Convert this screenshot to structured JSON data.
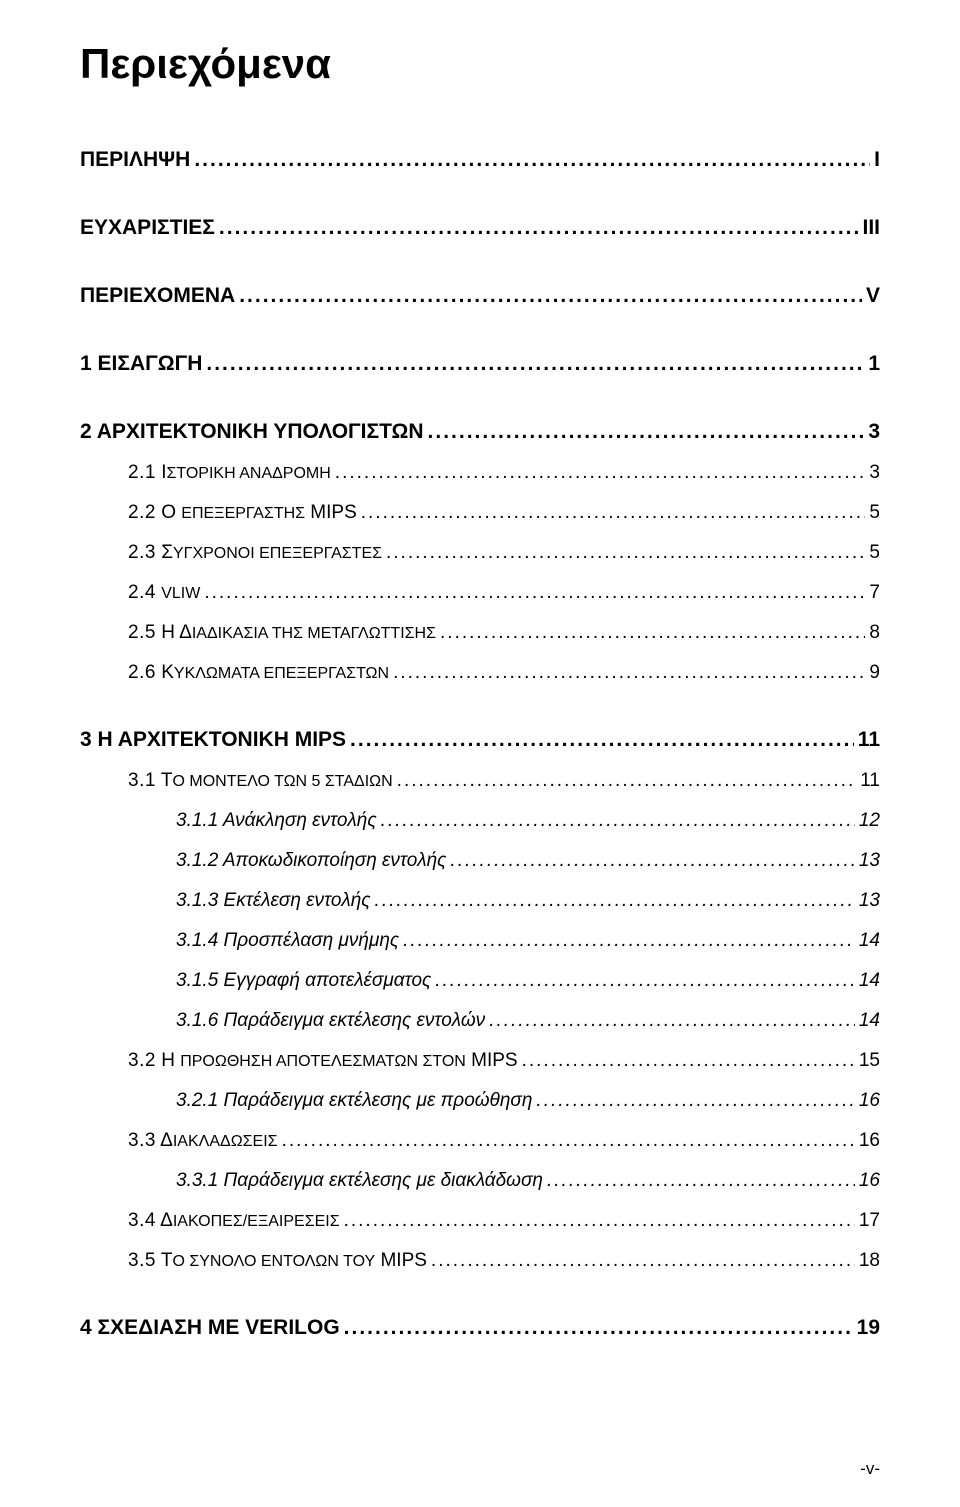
{
  "page": {
    "title": "Περιεχόμενα",
    "footer": "-v-"
  },
  "toc": [
    {
      "level": 0,
      "label": "ΠΕΡΙΛΗΨΗ",
      "page": "I"
    },
    {
      "level": 0,
      "label": "ΕΥΧΑΡΙΣΤΙΕΣ",
      "page": "III"
    },
    {
      "level": 0,
      "label": "ΠΕΡΙΕΧΟΜΕΝΑ",
      "page": "V"
    },
    {
      "level": 0,
      "label": "1   ΕΙΣΑΓΩΓΗ",
      "page": "1"
    },
    {
      "level": 0,
      "label": "2   ΑΡΧΙΤΕΚΤΟΝΙΚΗ ΥΠΟΛΟΓΙΣΤΩΝ",
      "page": "3"
    },
    {
      "level": 1,
      "num": "2.1",
      "first": "Ι",
      "rest": "ΣΤΟΡΙΚΗ ΑΝΑΔΡΟΜΗ",
      "page": "3"
    },
    {
      "level": 1,
      "num": "2.2",
      "first": "Ο ",
      "rest": "ΕΠΕΞΕΡΓΑΣΤΗΣ",
      "tail": " MIPS",
      "page": "5"
    },
    {
      "level": 1,
      "num": "2.3",
      "first": "Σ",
      "rest": "ΥΓΧΡΟΝΟΙ ΕΠΕΞΕΡΓΑΣΤΕΣ",
      "page": "5"
    },
    {
      "level": 1,
      "num": "2.4",
      "first": "",
      "rest": "VLIW",
      "page": "7"
    },
    {
      "level": 1,
      "num": "2.5",
      "first": "Η Δ",
      "rest": "ΙΑΔΙΚΑΣΙΑ ΤΗΣ ΜΕΤΑΓΛΩΤΤΙΣΗΣ",
      "page": "8"
    },
    {
      "level": 1,
      "num": "2.6",
      "first": "Κ",
      "rest": "ΥΚΛΩΜΑΤΑ ΕΠΕΞΕΡΓΑΣΤΩΝ",
      "page": "9"
    },
    {
      "level": 0,
      "label": "3   Η ΑΡΧΙΤΕΚΤΟΝΙΚΗ MIPS",
      "page": "11"
    },
    {
      "level": 1,
      "num": "3.1",
      "first": "Τ",
      "rest": "Ο ΜΟΝΤΕΛΟ ΤΩΝ 5 ΣΤΑΔΙΩΝ",
      "page": "11"
    },
    {
      "level": 2,
      "label": "3.1.1   Ανάκληση εντολής",
      "page": "12"
    },
    {
      "level": 2,
      "label": "3.1.2   Αποκωδικοποίηση εντολής",
      "page": "13"
    },
    {
      "level": 2,
      "label": "3.1.3   Εκτέλεση εντολής",
      "page": "13"
    },
    {
      "level": 2,
      "label": "3.1.4   Προσπέλαση μνήμης",
      "page": "14"
    },
    {
      "level": 2,
      "label": "3.1.5   Εγγραφή αποτελέσματος",
      "page": "14"
    },
    {
      "level": 2,
      "label": "3.1.6   Παράδειγμα εκτέλεσης εντολών",
      "page": "14"
    },
    {
      "level": 1,
      "num": "3.2",
      "first": "Η ",
      "rest": "ΠΡΟΩΘΗΣΗ ΑΠΟΤΕΛΕΣΜΑΤΩΝ ΣΤΟΝ",
      "tail": " MIPS",
      "page": "15"
    },
    {
      "level": 2,
      "label": "3.2.1   Παράδειγμα εκτέλεσης με προώθηση",
      "page": "16"
    },
    {
      "level": 1,
      "num": "3.3",
      "first": "Δ",
      "rest": "ΙΑΚΛΑΔΩΣΕΙΣ",
      "page": "16"
    },
    {
      "level": 2,
      "label": "3.3.1   Παράδειγμα εκτέλεσης με διακλάδωση",
      "page": "16"
    },
    {
      "level": 1,
      "num": "3.4",
      "first": "Δ",
      "rest": "ΙΑΚΟΠΕΣ/ΕΞΑΙΡΕΣΕΙΣ",
      "page": "17"
    },
    {
      "level": 1,
      "num": "3.5",
      "first": "Τ",
      "rest": "Ο ΣΥΝΟΛΟ ΕΝΤΟΛΩΝ ΤΟΥ",
      "tail": " MIPS",
      "page": "18"
    },
    {
      "level": 0,
      "label": "4   ΣΧΕΔΙΑΣΗ ΜΕ VERILOG",
      "page": "19"
    }
  ]
}
